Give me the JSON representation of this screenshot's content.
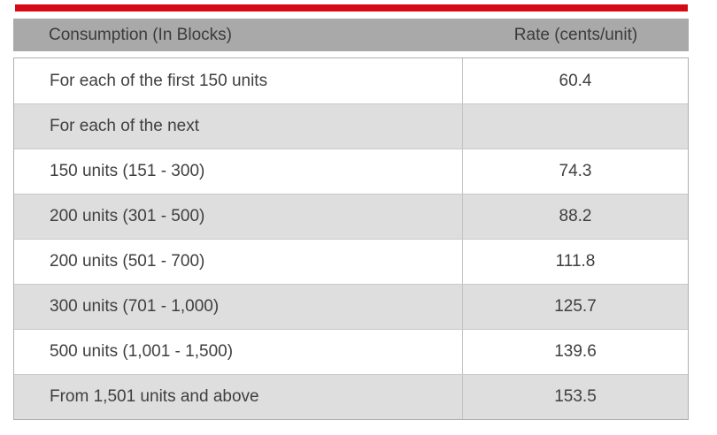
{
  "page": {
    "accent_bar_color": "#d60a14",
    "background_color": "#ffffff"
  },
  "table": {
    "header": {
      "col1": "Consumption (In Blocks)",
      "col2": "Rate (cents/unit)"
    },
    "rows": [
      {
        "consumption": "For each of the first 150 units",
        "rate": "60.4",
        "shaded": false
      },
      {
        "consumption": "For each of the next",
        "rate": "",
        "shaded": true
      },
      {
        "consumption": "150 units (151 - 300)",
        "rate": "74.3",
        "shaded": false
      },
      {
        "consumption": "200 units (301 - 500)",
        "rate": "88.2",
        "shaded": true
      },
      {
        "consumption": "200 units (501 - 700)",
        "rate": "111.8",
        "shaded": false
      },
      {
        "consumption": "300 units (701 - 1,000)",
        "rate": "125.7",
        "shaded": true
      },
      {
        "consumption": "500 units (1,001 - 1,500)",
        "rate": "139.6",
        "shaded": false
      },
      {
        "consumption": "From 1,501 units and above",
        "rate": "153.5",
        "shaded": true
      }
    ],
    "colors": {
      "header_bg": "#a9a9a9",
      "row_shaded_bg": "#dedede",
      "row_white_bg": "#ffffff",
      "outer_border": "#b0b0b0",
      "inner_border": "#c9c9c9",
      "text": "#3f3f3f"
    }
  },
  "chart_data": {
    "type": "table",
    "title": "Consumption block rates",
    "columns": [
      "Consumption (In Blocks)",
      "Rate (cents/unit)"
    ],
    "rows": [
      [
        "For each of the first 150 units",
        60.4
      ],
      [
        "For each of the next",
        null
      ],
      [
        "150 units (151 - 300)",
        74.3
      ],
      [
        "200 units (301 - 500)",
        88.2
      ],
      [
        "200 units (501 - 700)",
        111.8
      ],
      [
        "300 units (701 - 1,000)",
        125.7
      ],
      [
        "500 units (1,001 - 1,500)",
        139.6
      ],
      [
        "From 1,501 units and above",
        153.5
      ]
    ],
    "layout_hints": {
      "zebra_striping": true,
      "rate_column_alignment": "center",
      "consumption_column_alignment": "left"
    }
  }
}
